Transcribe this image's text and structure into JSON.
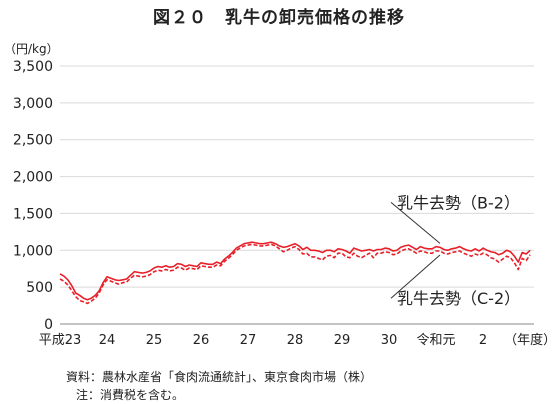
{
  "title": "図２０　乳牛の卸売価格の推移",
  "unit_label": "（円/kg）",
  "source_prefix": "資料：",
  "source_text": "農林水産省「食肉流通統計」、東京食肉市場（株）",
  "note_prefix": "注：",
  "note_text": "消費税を含む。",
  "colors": {
    "series": "#e8202a",
    "grid": "#d9d9d9",
    "axis": "#888888",
    "text": "#222222"
  },
  "chart_data": {
    "type": "line",
    "title": "図２０　乳牛の卸売価格の推移",
    "ylabel": "（円/kg）",
    "xlabel": "（年度）",
    "ylim": [
      0,
      3500
    ],
    "yticks": [
      0,
      500,
      1000,
      1500,
      2000,
      2500,
      3000,
      3500
    ],
    "ytick_labels": [
      "0",
      "500",
      "1,000",
      "1,500",
      "2,000",
      "2,500",
      "3,000",
      "3,500"
    ],
    "xlim": [
      0,
      121
    ],
    "x_tick_positions": [
      0,
      12,
      24,
      36,
      48,
      60,
      72,
      84,
      96,
      108,
      120
    ],
    "x_tick_labels": [
      "平成23",
      "24",
      "25",
      "26",
      "27",
      "28",
      "29",
      "30",
      "令和元",
      "2",
      "（年度）"
    ],
    "grid": true,
    "series": [
      {
        "name": "乳牛去勢（B-2）",
        "style": "solid",
        "label_y": 1650,
        "values": [
          680,
          650,
          600,
          520,
          420,
          390,
          350,
          330,
          350,
          390,
          450,
          560,
          640,
          620,
          600,
          590,
          600,
          610,
          660,
          710,
          700,
          690,
          700,
          720,
          760,
          780,
          770,
          790,
          770,
          780,
          820,
          810,
          780,
          800,
          790,
          780,
          830,
          820,
          810,
          810,
          840,
          820,
          880,
          920,
          970,
          1030,
          1060,
          1090,
          1100,
          1110,
          1100,
          1090,
          1090,
          1100,
          1110,
          1090,
          1060,
          1040,
          1050,
          1070,
          1090,
          1060,
          1010,
          1040,
          1000,
          1000,
          990,
          970,
          1000,
          1000,
          980,
          1020,
          1010,
          990,
          960,
          1030,
          1010,
          990,
          1000,
          1010,
          990,
          1010,
          1010,
          1030,
          1020,
          990,
          1000,
          1040,
          1060,
          1070,
          1040,
          1010,
          1050,
          1030,
          1020,
          1020,
          1050,
          1040,
          1010,
          1000,
          1020,
          1030,
          1050,
          1020,
          1000,
          990,
          1020,
          990,
          1030,
          1000,
          980,
          970,
          940,
          960,
          1000,
          980,
          920,
          840,
          970,
          950,
          1000
        ]
      },
      {
        "name": "乳牛去勢（C-2）",
        "style": "dashed",
        "label_y": 350,
        "values": [
          610,
          580,
          530,
          450,
          370,
          320,
          300,
          280,
          310,
          350,
          420,
          530,
          600,
          580,
          560,
          540,
          560,
          570,
          620,
          660,
          650,
          640,
          650,
          670,
          710,
          730,
          720,
          740,
          720,
          730,
          770,
          760,
          730,
          760,
          750,
          740,
          790,
          780,
          770,
          770,
          800,
          790,
          850,
          890,
          940,
          1000,
          1030,
          1060,
          1070,
          1080,
          1070,
          1060,
          1060,
          1070,
          1080,
          1060,
          1020,
          980,
          1000,
          1030,
          1050,
          1010,
          950,
          960,
          910,
          910,
          890,
          870,
          920,
          930,
          900,
          960,
          960,
          910,
          900,
          960,
          920,
          900,
          930,
          960,
          900,
          960,
          960,
          980,
          970,
          940,
          950,
          990,
          1010,
          1020,
          990,
          960,
          990,
          980,
          960,
          960,
          990,
          990,
          960,
          950,
          970,
          980,
          990,
          960,
          940,
          920,
          950,
          930,
          960,
          940,
          900,
          880,
          840,
          880,
          920,
          900,
          830,
          740,
          890,
          860,
          940
        ]
      }
    ]
  }
}
